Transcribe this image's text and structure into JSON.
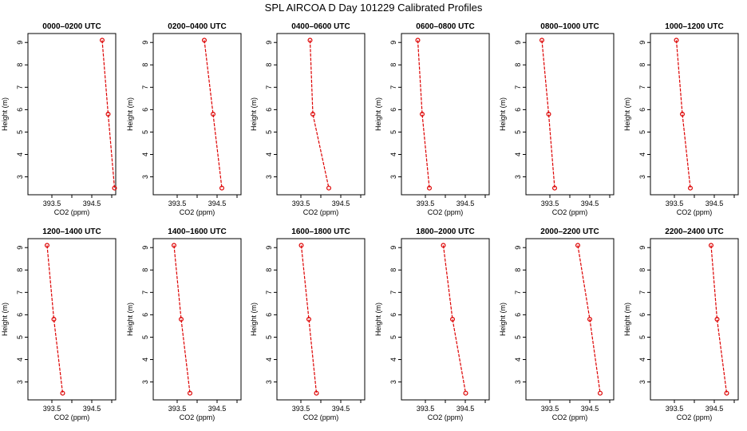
{
  "figure_title": "SPL AIRCOA D  Day 101229  Calibrated Profiles",
  "chart_data": {
    "type": "line",
    "xlabel": "CO2 (ppm)",
    "ylabel": "Height (m)",
    "xlim": [
      392.9,
      395.1
    ],
    "ylim": [
      2.2,
      9.4
    ],
    "xticks": [
      393.5,
      394.0,
      394.5,
      395.0
    ],
    "xtick_labels": [
      "393.5",
      "",
      "394.5",
      ""
    ],
    "yticks": [
      3,
      4,
      5,
      6,
      7,
      8,
      9
    ],
    "heights": [
      9.1,
      5.8,
      2.5
    ],
    "panels": [
      {
        "title": "0000–0200 UTC",
        "co2": [
          394.76,
          394.91,
          395.07
        ]
      },
      {
        "title": "0200–0400 UTC",
        "co2": [
          394.18,
          394.4,
          394.62
        ]
      },
      {
        "title": "0400–0600 UTC",
        "co2": [
          393.73,
          393.8,
          394.2
        ]
      },
      {
        "title": "0600–0800 UTC",
        "co2": [
          393.31,
          393.42,
          393.6
        ]
      },
      {
        "title": "0800–1000 UTC",
        "co2": [
          393.3,
          393.47,
          393.62
        ]
      },
      {
        "title": "1000–1200 UTC",
        "co2": [
          393.55,
          393.7,
          393.9
        ]
      },
      {
        "title": "1200–1400 UTC",
        "co2": [
          393.38,
          393.55,
          393.77
        ]
      },
      {
        "title": "1400–1600 UTC",
        "co2": [
          393.42,
          393.6,
          393.82
        ]
      },
      {
        "title": "1600–1800 UTC",
        "co2": [
          393.51,
          393.7,
          393.89
        ]
      },
      {
        "title": "1800–2000 UTC",
        "co2": [
          393.95,
          394.18,
          394.51
        ]
      },
      {
        "title": "2000–2200 UTC",
        "co2": [
          394.2,
          394.5,
          394.76
        ]
      },
      {
        "title": "2200–2400 UTC",
        "co2": [
          394.42,
          394.57,
          394.81
        ]
      }
    ]
  }
}
